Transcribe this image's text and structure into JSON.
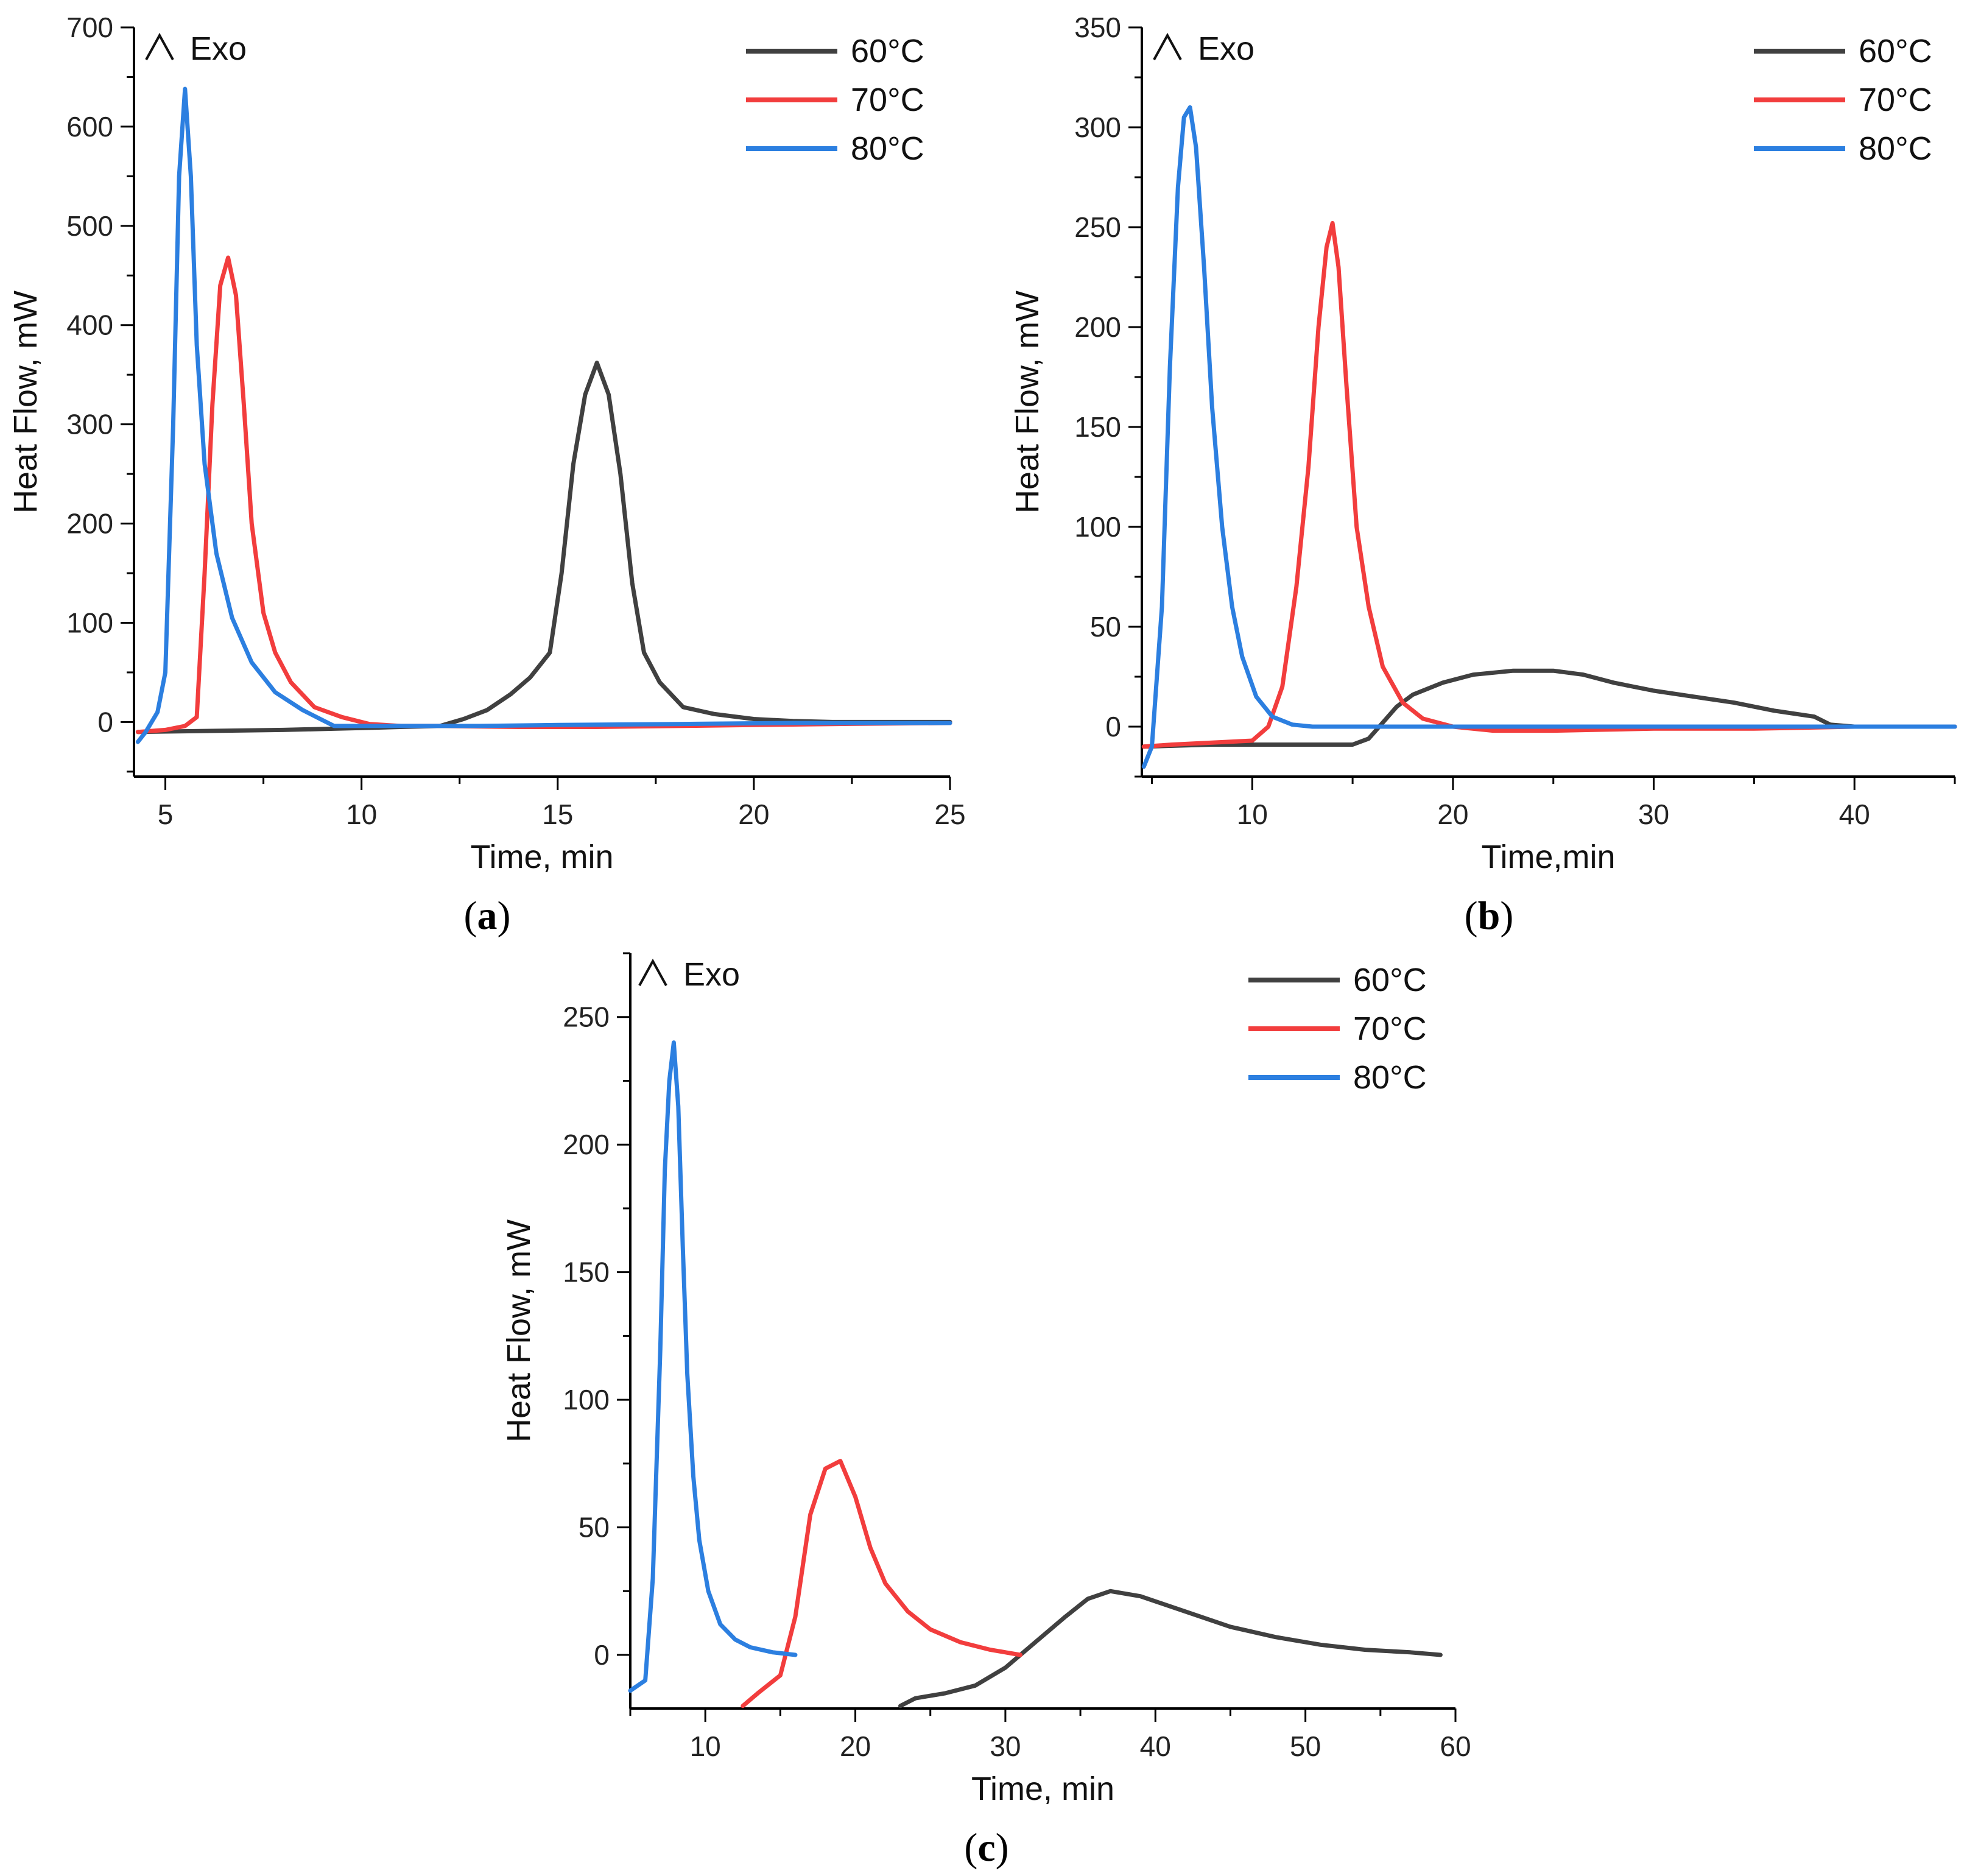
{
  "chart_data": [
    {
      "type": "line",
      "caption_open": "(",
      "caption_letter": "a",
      "caption_close": ")",
      "annotation": "Exo",
      "annotation_icon": "exo-arrow-icon",
      "xlabel": "Time, min",
      "ylabel": "Heat Flow, mW",
      "xlim": [
        4.2,
        25
      ],
      "ylim": [
        -55,
        700
      ],
      "xticks": [
        5,
        10,
        15,
        20,
        25
      ],
      "yticks": [
        0,
        100,
        200,
        300,
        400,
        500,
        600,
        700
      ],
      "legend_position": "top-right",
      "series": [
        {
          "name": "60°C",
          "color": "#404040",
          "x": [
            4.3,
            6,
            8,
            10,
            11,
            12,
            12.6,
            13.2,
            13.8,
            14.3,
            14.8,
            15.1,
            15.4,
            15.7,
            16.0,
            16.3,
            16.6,
            16.9,
            17.2,
            17.6,
            18.2,
            19,
            20,
            21,
            22,
            25
          ],
          "y": [
            -10,
            -9,
            -8,
            -6,
            -5,
            -4,
            3,
            12,
            28,
            45,
            70,
            150,
            260,
            330,
            362,
            330,
            250,
            140,
            70,
            40,
            15,
            8,
            3,
            1,
            0,
            0
          ]
        },
        {
          "name": "70°C",
          "color": "#f23d3d",
          "x": [
            4.3,
            5.0,
            5.5,
            5.8,
            6.0,
            6.2,
            6.4,
            6.6,
            6.8,
            7.0,
            7.2,
            7.5,
            7.8,
            8.2,
            8.8,
            9.5,
            10.2,
            11,
            12,
            14,
            16,
            18,
            20,
            22,
            25
          ],
          "y": [
            -10,
            -8,
            -4,
            5,
            150,
            320,
            440,
            468,
            430,
            320,
            200,
            110,
            70,
            40,
            15,
            5,
            -2,
            -4,
            -4,
            -5,
            -5,
            -4,
            -3,
            -2,
            -1
          ]
        },
        {
          "name": "80°C",
          "color": "#2c7fe0",
          "x": [
            4.3,
            4.5,
            4.8,
            5.0,
            5.2,
            5.35,
            5.5,
            5.65,
            5.8,
            6.0,
            6.3,
            6.7,
            7.2,
            7.8,
            8.5,
            9.0,
            9.3,
            10,
            11,
            13,
            15,
            18,
            21,
            25
          ],
          "y": [
            -20,
            -10,
            10,
            50,
            300,
            550,
            638,
            550,
            380,
            260,
            170,
            105,
            60,
            30,
            12,
            2,
            -4,
            -4,
            -4,
            -4,
            -3,
            -2,
            -1,
            -1
          ]
        }
      ]
    },
    {
      "type": "line",
      "caption_open": "(",
      "caption_letter": "b",
      "caption_close": ")",
      "annotation": "Exo",
      "annotation_icon": "exo-arrow-icon",
      "xlabel": "Time,min",
      "ylabel": "Heat Flow, mW",
      "xlim": [
        4.5,
        45
      ],
      "ylim": [
        -25,
        350
      ],
      "xticks": [
        10,
        20,
        30,
        40
      ],
      "yticks": [
        0,
        50,
        100,
        150,
        200,
        250,
        300,
        350
      ],
      "legend_position": "top-right",
      "series": [
        {
          "name": "60°C",
          "color": "#404040",
          "x": [
            4.6,
            8,
            12,
            15,
            15.8,
            16.5,
            17.2,
            18,
            19.5,
            21,
            23,
            25,
            26.5,
            28,
            30,
            32,
            34,
            36,
            38,
            38.8,
            40,
            45
          ],
          "y": [
            -10,
            -9,
            -9,
            -9,
            -6,
            2,
            10,
            16,
            22,
            26,
            28,
            28,
            26,
            22,
            18,
            15,
            12,
            8,
            5,
            1,
            0,
            0
          ]
        },
        {
          "name": "70°C",
          "color": "#f23d3d",
          "x": [
            4.6,
            6,
            8,
            10,
            10.8,
            11.5,
            12.2,
            12.8,
            13.3,
            13.7,
            14.0,
            14.3,
            14.7,
            15.2,
            15.8,
            16.5,
            17.5,
            18.5,
            20,
            22,
            25,
            30,
            35,
            40,
            45
          ],
          "y": [
            -10,
            -9,
            -8,
            -7,
            0,
            20,
            70,
            130,
            200,
            240,
            252,
            230,
            170,
            100,
            60,
            30,
            12,
            4,
            0,
            -2,
            -2,
            -1,
            -1,
            0,
            0
          ]
        },
        {
          "name": "80°C",
          "color": "#2c7fe0",
          "x": [
            4.6,
            5.0,
            5.5,
            5.9,
            6.3,
            6.6,
            6.9,
            7.2,
            7.6,
            8.0,
            8.5,
            9.0,
            9.5,
            10.2,
            11,
            12,
            13,
            15,
            20,
            30,
            45
          ],
          "y": [
            -20,
            -10,
            60,
            180,
            270,
            305,
            310,
            290,
            230,
            160,
            100,
            60,
            35,
            15,
            5,
            1,
            0,
            0,
            0,
            0,
            0
          ]
        }
      ]
    },
    {
      "type": "line",
      "caption_open": "(",
      "caption_letter": "c",
      "caption_close": ")",
      "annotation": "Exo",
      "annotation_icon": "exo-arrow-icon",
      "xlabel": "Time, min",
      "ylabel": "Heat Flow, mW",
      "xlim": [
        5,
        60
      ],
      "ylim": [
        -21,
        275
      ],
      "xticks": [
        10,
        20,
        30,
        40,
        50,
        60
      ],
      "yticks": [
        0,
        50,
        100,
        150,
        200,
        250
      ],
      "legend_position": "top-right",
      "series": [
        {
          "name": "60°C",
          "color": "#404040",
          "x": [
            23.0,
            24,
            26,
            28,
            30,
            32,
            34,
            35.5,
            37,
            39,
            41,
            43,
            45,
            48,
            51,
            54,
            57,
            59
          ],
          "y": [
            -20,
            -17,
            -15,
            -12,
            -5,
            5,
            15,
            22,
            25,
            23,
            19,
            15,
            11,
            7,
            4,
            2,
            1,
            0
          ]
        },
        {
          "name": "70°C",
          "color": "#f23d3d",
          "x": [
            12.5,
            13.5,
            15,
            16,
            17,
            18,
            19,
            20,
            21,
            22,
            23.5,
            25,
            27,
            29,
            31
          ],
          "y": [
            -20,
            -15,
            -8,
            15,
            55,
            73,
            76,
            62,
            42,
            28,
            17,
            10,
            5,
            2,
            0
          ]
        },
        {
          "name": "80°C",
          "color": "#2c7fe0",
          "x": [
            5.0,
            6.0,
            6.5,
            7.0,
            7.3,
            7.6,
            7.9,
            8.2,
            8.5,
            8.8,
            9.2,
            9.6,
            10.2,
            11,
            12,
            13,
            14.5,
            16
          ],
          "y": [
            -14,
            -10,
            30,
            120,
            190,
            225,
            240,
            215,
            160,
            110,
            70,
            45,
            25,
            12,
            6,
            3,
            1,
            0
          ]
        }
      ]
    }
  ]
}
